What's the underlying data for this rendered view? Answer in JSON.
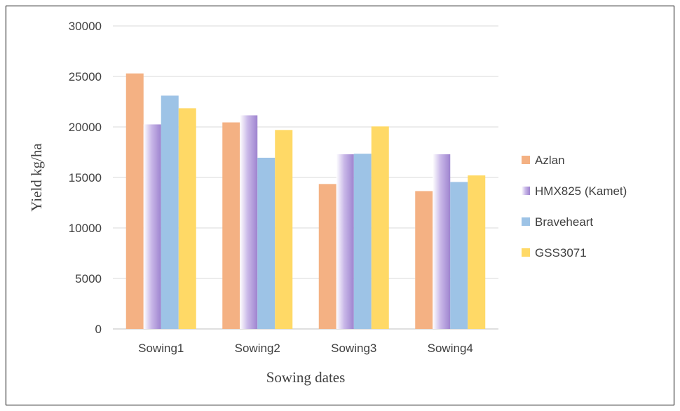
{
  "chart_data": {
    "type": "bar",
    "title": "",
    "xlabel": "Sowing dates",
    "ylabel": "Yield kg/ha",
    "ylim": [
      0,
      30000
    ],
    "yticks": [
      0,
      5000,
      10000,
      15000,
      20000,
      25000,
      30000
    ],
    "grid": true,
    "legend_position": "right",
    "categories": [
      "Sowing1",
      "Sowing2",
      "Sowing3",
      "Sowing4"
    ],
    "series": [
      {
        "name": "Azlan",
        "color": "#F4B183",
        "values": [
          25300,
          20450,
          14350,
          13650
        ]
      },
      {
        "name": "HMX825 (Kamet)",
        "color": "#B4A0D8",
        "values": [
          20250,
          21150,
          17300,
          17300
        ]
      },
      {
        "name": "Braveheart",
        "color": "#9DC3E6",
        "values": [
          23100,
          16950,
          17350,
          14550
        ]
      },
      {
        "name": "GSS3071",
        "color": "#FFD966",
        "values": [
          21850,
          19700,
          20050,
          15200
        ]
      }
    ]
  }
}
